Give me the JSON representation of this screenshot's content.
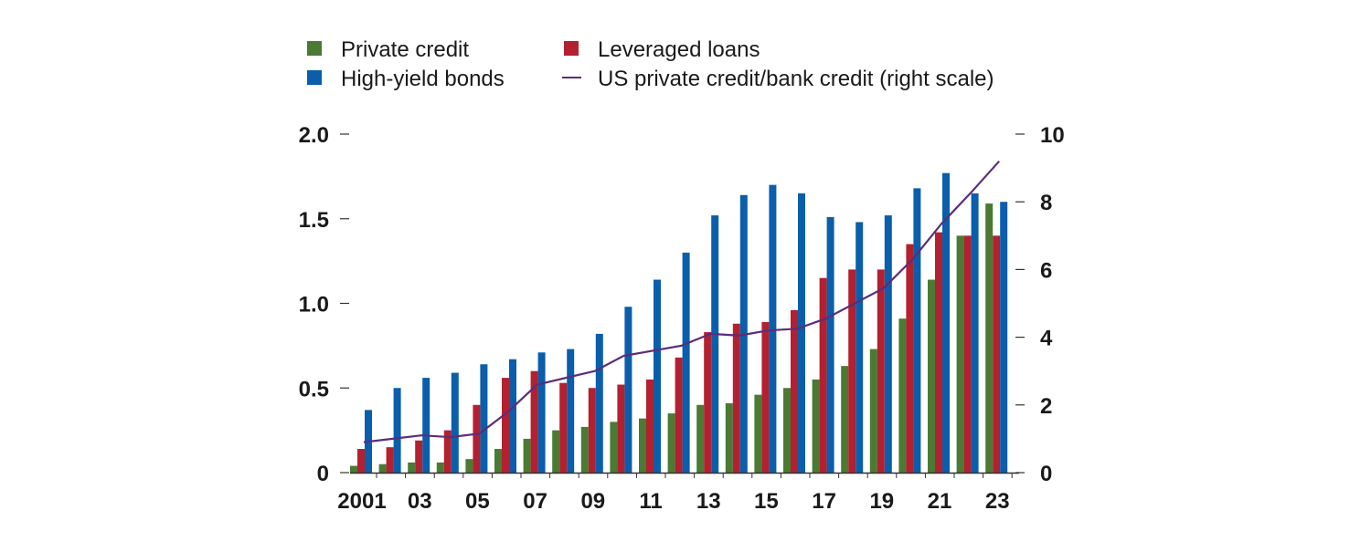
{
  "colors": {
    "private_credit": "#4a7a33",
    "leveraged_loans": "#b3202f",
    "high_yield_bonds": "#0a5eab",
    "ratio_line": "#5b2d7a",
    "axis": "#333333",
    "text": "#1a1a1a"
  },
  "legend": [
    {
      "key": "private_credit",
      "label": "Private credit",
      "marker": "square"
    },
    {
      "key": "leveraged_loans",
      "label": "Leveraged loans",
      "marker": "square"
    },
    {
      "key": "high_yield_bonds",
      "label": "High-yield bonds",
      "marker": "square"
    },
    {
      "key": "ratio_line",
      "label": "US private credit/bank credit (right scale)",
      "marker": "line"
    }
  ],
  "chart_data": {
    "type": "bar",
    "x": [
      2001,
      2002,
      2003,
      2004,
      2005,
      2006,
      2007,
      2008,
      2009,
      2010,
      2011,
      2012,
      2013,
      2014,
      2015,
      2016,
      2017,
      2018,
      2019,
      2020,
      2021,
      2022,
      2023
    ],
    "x_tick_labels": [
      "2001",
      "03",
      "05",
      "07",
      "09",
      "11",
      "13",
      "15",
      "17",
      "19",
      "21",
      "23"
    ],
    "x_tick_years": [
      2001,
      2003,
      2005,
      2007,
      2009,
      2011,
      2013,
      2015,
      2017,
      2019,
      2021,
      2023
    ],
    "left_axis": {
      "ylim": [
        0,
        2.0
      ],
      "ticks": [
        0,
        0.5,
        1.0,
        1.5,
        2.0
      ],
      "tick_labels": [
        "0",
        "0.5",
        "1.0",
        "1.5",
        "2.0"
      ]
    },
    "right_axis": {
      "ylim": [
        0,
        10
      ],
      "ticks": [
        0,
        2,
        4,
        6,
        8,
        10
      ],
      "tick_labels": [
        "0",
        "2",
        "4",
        "6",
        "8",
        "10"
      ]
    },
    "series": [
      {
        "key": "private_credit",
        "name": "Private credit",
        "type": "bar",
        "axis": "left",
        "values": [
          0.04,
          0.05,
          0.06,
          0.06,
          0.08,
          0.14,
          0.2,
          0.25,
          0.27,
          0.3,
          0.32,
          0.35,
          0.4,
          0.41,
          0.46,
          0.5,
          0.55,
          0.63,
          0.73,
          0.91,
          1.14,
          1.4,
          1.59
        ]
      },
      {
        "key": "leveraged_loans",
        "name": "Leveraged loans",
        "type": "bar",
        "axis": "left",
        "values": [
          0.14,
          0.15,
          0.19,
          0.25,
          0.4,
          0.56,
          0.6,
          0.53,
          0.5,
          0.52,
          0.55,
          0.68,
          0.83,
          0.88,
          0.89,
          0.96,
          1.15,
          1.2,
          1.2,
          1.35,
          1.42,
          1.4,
          1.4
        ]
      },
      {
        "key": "high_yield_bonds",
        "name": "High-yield bonds",
        "type": "bar",
        "axis": "left",
        "values": [
          0.37,
          0.5,
          0.56,
          0.59,
          0.64,
          0.67,
          0.71,
          0.73,
          0.82,
          0.98,
          1.14,
          1.3,
          1.52,
          1.64,
          1.7,
          1.65,
          1.51,
          1.48,
          1.52,
          1.68,
          1.77,
          1.65,
          1.6
        ]
      },
      {
        "key": "ratio_line",
        "name": "US private credit/bank credit (right scale)",
        "type": "line",
        "axis": "right",
        "values": [
          0.9,
          1.0,
          1.1,
          1.05,
          1.15,
          1.8,
          2.6,
          2.8,
          3.0,
          3.45,
          3.6,
          3.75,
          4.1,
          4.05,
          4.2,
          4.25,
          4.55,
          5.0,
          5.45,
          6.3,
          7.35,
          8.25,
          9.2
        ]
      }
    ]
  }
}
